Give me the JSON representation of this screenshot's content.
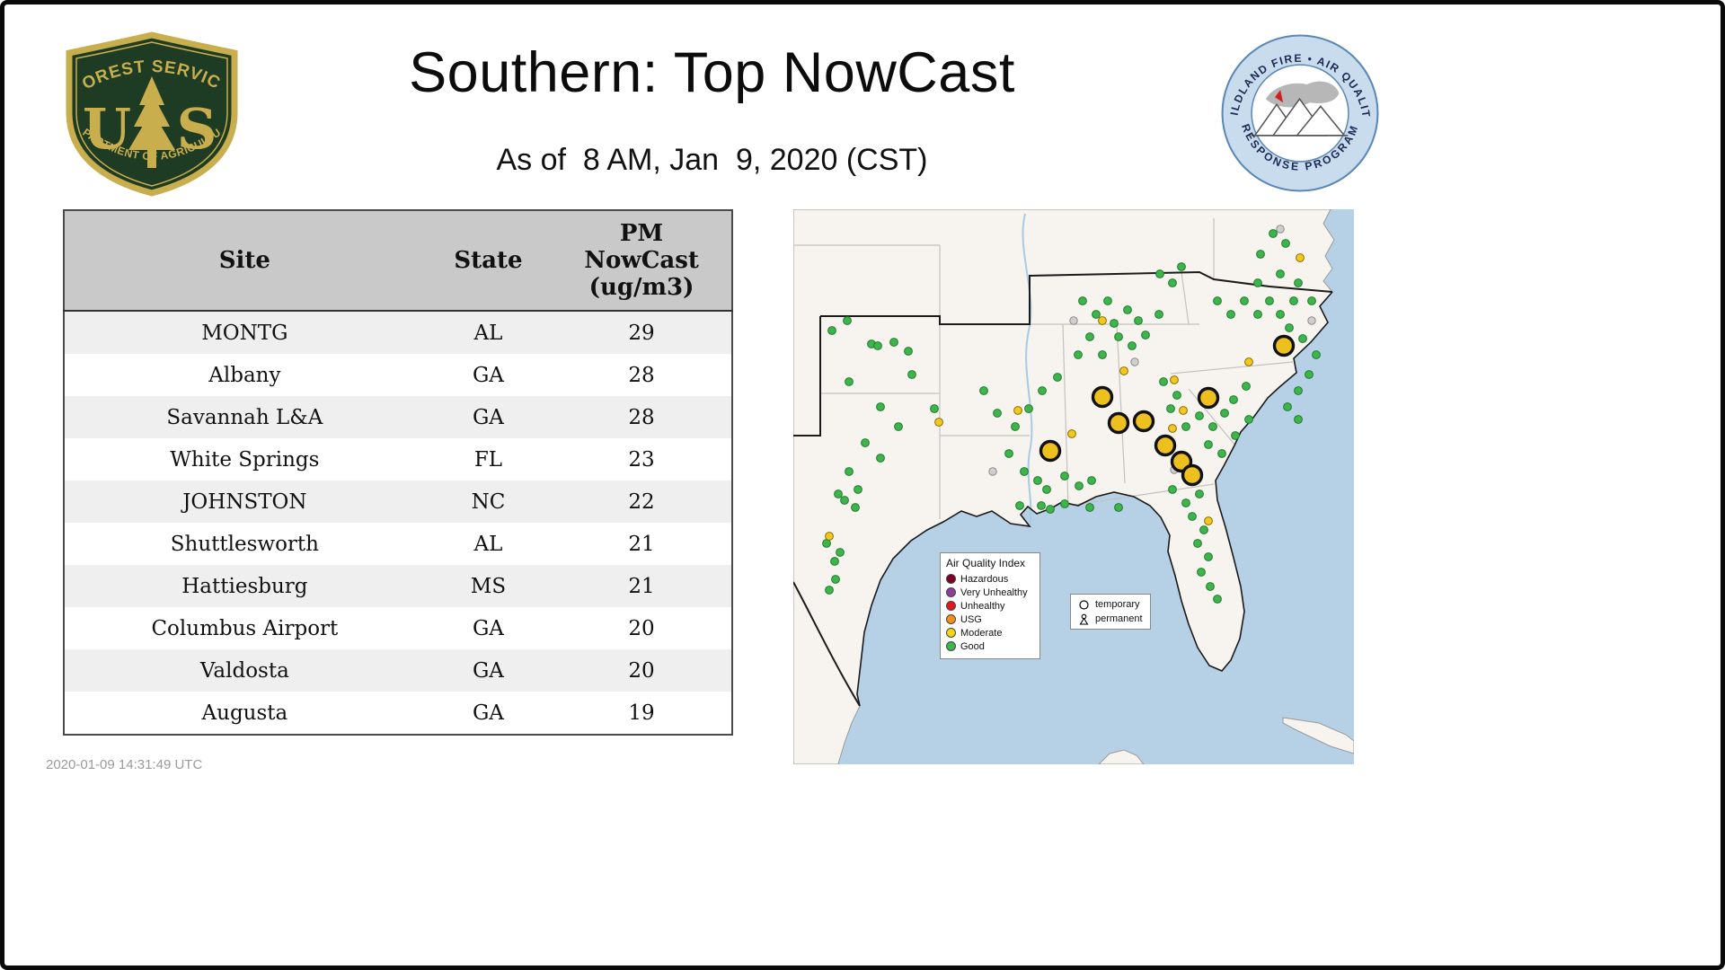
{
  "header": {
    "title": "Southern: Top NowCast",
    "subtitle": "As of  8 AM, Jan  9, 2020 (CST)",
    "usfs_logo": {
      "arc_top": "FOREST SERVICE",
      "letter_u": "U",
      "letter_s": "S",
      "arc_bottom": "DEPARTMENT OF AGRICULTURE"
    },
    "program_logo": {
      "arc_top": "WILDLAND FIRE • AIR QUALITY",
      "arc_bottom": "RESPONSE PROGRAM"
    }
  },
  "chart_data": {
    "type": "table",
    "title": "Southern: Top NowCast",
    "subtitle": "As of 8 AM, Jan 9, 2020 (CST)",
    "columns": [
      "Site",
      "State",
      "PM\nNowCast\n(ug/m3)"
    ],
    "rows": [
      [
        "MONTG",
        "AL",
        29
      ],
      [
        "Albany",
        "GA",
        28
      ],
      [
        "Savannah L&A",
        "GA",
        28
      ],
      [
        "White Springs",
        "FL",
        23
      ],
      [
        "JOHNSTON",
        "NC",
        22
      ],
      [
        "Shuttlesworth",
        "AL",
        21
      ],
      [
        "Hattiesburg",
        "MS",
        21
      ],
      [
        "Columbus Airport",
        "GA",
        20
      ],
      [
        "Valdosta",
        "GA",
        20
      ],
      [
        "Augusta",
        "GA",
        19
      ]
    ]
  },
  "map": {
    "legend": {
      "title": "Air Quality Index",
      "items": [
        {
          "label": "Hazardous",
          "color": "#7e0023"
        },
        {
          "label": "Very Unhealthy",
          "color": "#8f3f97"
        },
        {
          "label": "Unhealthy",
          "color": "#e4161d"
        },
        {
          "label": "USG",
          "color": "#f3901d"
        },
        {
          "label": "Moderate",
          "color": "#f5d516"
        },
        {
          "label": "Good",
          "color": "#3db54a"
        }
      ]
    },
    "marker_legend": {
      "temporary": "temporary",
      "permanent": "permanent"
    },
    "markers": {
      "inactive": {
        "fill": "#cfcfcf",
        "stroke": "#8a8a8a",
        "stroke_width": 1,
        "r": 4.2,
        "points": [
          [
            312,
            124
          ],
          [
            380,
            170
          ],
          [
            577,
            124
          ],
          [
            424,
            290
          ],
          [
            222,
            292
          ],
          [
            542,
            22
          ]
        ]
      },
      "good": {
        "fill": "#3db54a",
        "stroke": "#1f7a30",
        "stroke_width": 1,
        "r": 4.4,
        "points": [
          [
            43,
            135
          ],
          [
            60,
            124
          ],
          [
            87,
            150
          ],
          [
            94,
            152
          ],
          [
            112,
            148
          ],
          [
            128,
            158
          ],
          [
            62,
            192
          ],
          [
            132,
            184
          ],
          [
            97,
            220
          ],
          [
            157,
            222
          ],
          [
            117,
            242
          ],
          [
            80,
            260
          ],
          [
            97,
            277
          ],
          [
            62,
            292
          ],
          [
            72,
            312
          ],
          [
            57,
            324
          ],
          [
            69,
            332
          ],
          [
            50,
            317
          ],
          [
            37,
            372
          ],
          [
            52,
            382
          ],
          [
            47,
            412
          ],
          [
            40,
            424
          ],
          [
            46,
            392
          ],
          [
            212,
            202
          ],
          [
            227,
            227
          ],
          [
            247,
            242
          ],
          [
            262,
            222
          ],
          [
            240,
            272
          ],
          [
            257,
            292
          ],
          [
            272,
            302
          ],
          [
            282,
            312
          ],
          [
            302,
            297
          ],
          [
            318,
            308
          ],
          [
            332,
            302
          ],
          [
            277,
            202
          ],
          [
            294,
            187
          ],
          [
            322,
            102
          ],
          [
            337,
            117
          ],
          [
            350,
            102
          ],
          [
            357,
            127
          ],
          [
            372,
            112
          ],
          [
            384,
            124
          ],
          [
            362,
            142
          ],
          [
            377,
            152
          ],
          [
            392,
            140
          ],
          [
            407,
            117
          ],
          [
            344,
            162
          ],
          [
            330,
            142
          ],
          [
            317,
            162
          ],
          [
            408,
            72
          ],
          [
            422,
            82
          ],
          [
            432,
            64
          ],
          [
            412,
            192
          ],
          [
            427,
            207
          ],
          [
            420,
            222
          ],
          [
            437,
            242
          ],
          [
            452,
            230
          ],
          [
            467,
            242
          ],
          [
            480,
            227
          ],
          [
            462,
            262
          ],
          [
            477,
            272
          ],
          [
            492,
            252
          ],
          [
            507,
            234
          ],
          [
            490,
            212
          ],
          [
            504,
            197
          ],
          [
            472,
            102
          ],
          [
            487,
            117
          ],
          [
            502,
            102
          ],
          [
            517,
            117
          ],
          [
            530,
            102
          ],
          [
            517,
            82
          ],
          [
            542,
            117
          ],
          [
            557,
            102
          ],
          [
            542,
            72
          ],
          [
            562,
            82
          ],
          [
            577,
            102
          ],
          [
            552,
            132
          ],
          [
            567,
            144
          ],
          [
            582,
            162
          ],
          [
            574,
            184
          ],
          [
            562,
            202
          ],
          [
            550,
            220
          ],
          [
            562,
            234
          ],
          [
            422,
            312
          ],
          [
            437,
            327
          ],
          [
            452,
            317
          ],
          [
            444,
            342
          ],
          [
            457,
            357
          ],
          [
            450,
            372
          ],
          [
            462,
            387
          ],
          [
            454,
            404
          ],
          [
            464,
            420
          ],
          [
            472,
            434
          ],
          [
            362,
            332
          ],
          [
            330,
            332
          ],
          [
            302,
            328
          ],
          [
            286,
            334
          ],
          [
            276,
            330
          ],
          [
            252,
            330
          ],
          [
            534,
            27
          ],
          [
            548,
            38
          ],
          [
            520,
            50
          ]
        ]
      },
      "moderate": {
        "fill": "#f2c81e",
        "stroke": "#8a6d00",
        "stroke_width": 1,
        "r": 4.4,
        "points": [
          [
            162,
            237
          ],
          [
            250,
            224
          ],
          [
            424,
            190
          ],
          [
            434,
            224
          ],
          [
            507,
            170
          ],
          [
            564,
            54
          ],
          [
            462,
            347
          ],
          [
            40,
            364
          ],
          [
            344,
            124
          ],
          [
            422,
            244
          ],
          [
            368,
            180
          ],
          [
            310,
            250
          ]
        ]
      },
      "top_sites": {
        "fill": "#eec01e",
        "stroke": "#111111",
        "stroke_width": 3.4,
        "r": 10.5,
        "points": [
          [
            344,
            209
          ],
          [
            362,
            238
          ],
          [
            390,
            236
          ],
          [
            414,
            263
          ],
          [
            432,
            281
          ],
          [
            444,
            296
          ],
          [
            462,
            210
          ],
          [
            286,
            269
          ],
          [
            546,
            152
          ]
        ]
      }
    }
  },
  "footer": {
    "timestamp": "2020-01-09 14:31:49 UTC"
  }
}
